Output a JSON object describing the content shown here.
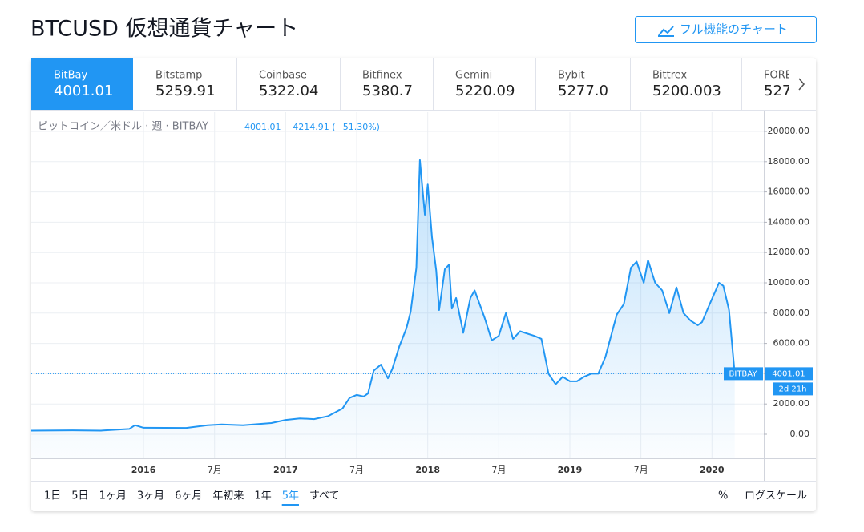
{
  "header": {
    "title": "BTCUSD 仮想通貨チャート",
    "button": "フル機能のチャート"
  },
  "tabs": [
    {
      "name": "BitBay",
      "price": "4001.01"
    },
    {
      "name": "Bitstamp",
      "price": "5259.91"
    },
    {
      "name": "Coinbase",
      "price": "5322.04"
    },
    {
      "name": "Bitfinex",
      "price": "5380.7"
    },
    {
      "name": "Gemini",
      "price": "5220.09"
    },
    {
      "name": "Bybit",
      "price": "5277.0"
    },
    {
      "name": "Bittrex",
      "price": "5200.003"
    },
    {
      "name": "FORE",
      "price": "527"
    }
  ],
  "active_tab": 0,
  "chart_data": {
    "type": "area",
    "legend": {
      "symbol": "ビットコイン／米ドル · 週 · BITBAY",
      "last": "4001.01",
      "change": "−4214.91 (−51.30%)"
    },
    "x": [
      2015.21,
      2015.5,
      2015.7,
      2015.9,
      2015.94,
      2016.0,
      2016.3,
      2016.45,
      2016.55,
      2016.7,
      2016.9,
      2017.0,
      2017.1,
      2017.2,
      2017.3,
      2017.4,
      2017.45,
      2017.5,
      2017.55,
      2017.58,
      2017.62,
      2017.67,
      2017.72,
      2017.75,
      2017.8,
      2017.85,
      2017.88,
      2017.92,
      2017.945,
      2017.98,
      2018.0,
      2018.03,
      2018.06,
      2018.08,
      2018.12,
      2018.15,
      2018.17,
      2018.2,
      2018.25,
      2018.3,
      2018.33,
      2018.4,
      2018.45,
      2018.5,
      2018.55,
      2018.6,
      2018.65,
      2018.75,
      2018.8,
      2018.85,
      2018.9,
      2018.95,
      2019.0,
      2019.05,
      2019.1,
      2019.15,
      2019.2,
      2019.25,
      2019.33,
      2019.38,
      2019.43,
      2019.47,
      2019.52,
      2019.55,
      2019.6,
      2019.65,
      2019.7,
      2019.75,
      2019.8,
      2019.85,
      2019.9,
      2019.93,
      2019.98,
      2020.05,
      2020.08,
      2020.12,
      2020.16
    ],
    "series": [
      {
        "name": "BITBAY",
        "color": "#2196f3",
        "values": [
          240,
          260,
          240,
          350,
          600,
          430,
          420,
          600,
          650,
          600,
          740,
          950,
          1050,
          1000,
          1200,
          1700,
          2400,
          2600,
          2500,
          2700,
          4200,
          4600,
          3700,
          4300,
          5800,
          7000,
          8100,
          11000,
          18100,
          14500,
          16500,
          13000,
          10800,
          8200,
          10900,
          11200,
          8300,
          9000,
          6700,
          9000,
          9500,
          7700,
          6200,
          6500,
          8000,
          6300,
          6800,
          6500,
          6300,
          4000,
          3300,
          3800,
          3500,
          3500,
          3800,
          4000,
          4000,
          5100,
          7900,
          8600,
          11000,
          11400,
          10000,
          11500,
          10000,
          9500,
          8000,
          9700,
          8000,
          7500,
          7200,
          7400,
          8500,
          10000,
          9800,
          8200,
          4001.01
        ]
      }
    ],
    "countdown": "2d 21h",
    "xlim": [
      2015.21,
      2020.365
    ],
    "xticks": [
      {
        "value": 2016,
        "label": "2016"
      },
      {
        "value": 2016.5,
        "label": "7月"
      },
      {
        "value": 2017,
        "label": "2017"
      },
      {
        "value": 2017.5,
        "label": "7月"
      },
      {
        "value": 2018,
        "label": "2018"
      },
      {
        "value": 2018.5,
        "label": "7月"
      },
      {
        "value": 2019,
        "label": "2019"
      },
      {
        "value": 2019.5,
        "label": "7月"
      },
      {
        "value": 2020,
        "label": "2020"
      }
    ],
    "ylim": [
      -1587,
      21270
    ],
    "yticks": [
      {
        "value": 0,
        "label": "0.00"
      },
      {
        "value": 2000,
        "label": "2000.00"
      },
      {
        "value": 4000,
        "label": "4000.00"
      },
      {
        "value": 6000,
        "label": "6000.00"
      },
      {
        "value": 8000,
        "label": "8000.00"
      },
      {
        "value": 10000,
        "label": "10000.00"
      },
      {
        "value": 12000,
        "label": "12000.00"
      },
      {
        "value": 14000,
        "label": "14000.00"
      },
      {
        "value": 16000,
        "label": "16000.00"
      },
      {
        "value": 18000,
        "label": "18000.00"
      },
      {
        "value": 20000,
        "label": "20000.00"
      }
    ],
    "grid": true
  },
  "footer": {
    "ranges": [
      "1日",
      "5日",
      "1ヶ月",
      "3ヶ月",
      "6ヶ月",
      "年初来",
      "1年",
      "5年",
      "すべて"
    ],
    "selected_range": 7,
    "percent": "%",
    "log": "ログスケール"
  }
}
